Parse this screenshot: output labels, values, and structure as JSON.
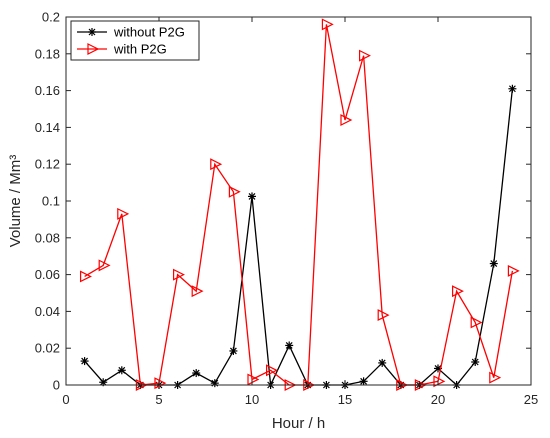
{
  "chart_data": {
    "type": "line",
    "title": "",
    "xlabel": "Hour / h",
    "ylabel": "Volume / Mm³",
    "xlim": [
      0,
      25
    ],
    "ylim": [
      0,
      0.2
    ],
    "xticks": [
      "0",
      "5",
      "10",
      "15",
      "20",
      "25"
    ],
    "yticks": [
      "0",
      "0.02",
      "0.04",
      "0.06",
      "0.08",
      "0.1",
      "0.12",
      "0.14",
      "0.16",
      "0.18",
      "0.2"
    ],
    "grid": false,
    "legend_position": "top-left",
    "x": [
      1,
      2,
      3,
      4,
      5,
      6,
      7,
      8,
      9,
      10,
      11,
      12,
      13,
      14,
      15,
      16,
      17,
      18,
      19,
      20,
      21,
      22,
      23,
      24
    ],
    "series": [
      {
        "name": "without P2G",
        "color": "#000000",
        "marker": "asterisk",
        "values": [
          0.013,
          0.0015,
          0.008,
          0,
          0,
          0,
          0.0065,
          0.001,
          0.0185,
          0.1025,
          0,
          0.0215,
          0,
          0,
          0,
          0.002,
          0.012,
          0,
          0,
          0.009,
          0,
          0.0125,
          0.066,
          0.161
        ]
      },
      {
        "name": "with P2G",
        "color": "#ff0000",
        "marker": "triangle-right",
        "values": [
          0.059,
          0.065,
          0.093,
          0,
          0.001,
          0.06,
          0.051,
          0.12,
          0.105,
          0.003,
          0.008,
          0,
          0,
          0.196,
          0.144,
          0.179,
          0.038,
          0,
          0,
          0.002,
          0.051,
          0.034,
          0.004,
          0.062
        ]
      }
    ]
  }
}
